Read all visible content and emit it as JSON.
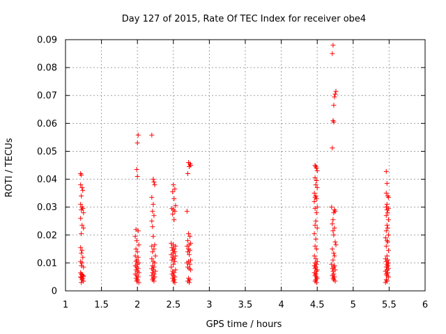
{
  "chart_data": {
    "type": "scatter",
    "title": "Day 127 of 2015, Rate Of TEC Index for receiver obe4",
    "xlabel": "GPS time / hours",
    "ylabel": "ROTI / TECUs",
    "xlim": [
      1,
      6
    ],
    "ylim": [
      0,
      0.09
    ],
    "xticks": [
      1,
      1.5,
      2,
      2.5,
      3,
      3.5,
      4,
      4.5,
      5,
      5.5,
      6
    ],
    "xtick_labels": [
      "1",
      "1.5",
      "2",
      "2.5",
      "3",
      "3.5",
      "4",
      "4.5",
      "5",
      "5.5",
      "6"
    ],
    "yticks": [
      0,
      0.01,
      0.02,
      0.03,
      0.04,
      0.05,
      0.06,
      0.07,
      0.08,
      0.09
    ],
    "ytick_labels": [
      "0",
      "0.01",
      "0.02",
      "0.03",
      "0.04",
      "0.05",
      "0.06",
      "0.07",
      "0.08",
      "0.09"
    ],
    "grid": true,
    "marker": "+",
    "color": "#ff0000",
    "series": [
      {
        "name": "obe4",
        "points": [
          [
            1.21,
            0.042
          ],
          [
            1.22,
            0.0415
          ],
          [
            1.21,
            0.038
          ],
          [
            1.23,
            0.037
          ],
          [
            1.24,
            0.036
          ],
          [
            1.22,
            0.034
          ],
          [
            1.21,
            0.031
          ],
          [
            1.23,
            0.03
          ],
          [
            1.24,
            0.0295
          ],
          [
            1.22,
            0.029
          ],
          [
            1.25,
            0.028
          ],
          [
            1.21,
            0.026
          ],
          [
            1.23,
            0.0235
          ],
          [
            1.25,
            0.0225
          ],
          [
            1.22,
            0.0205
          ],
          [
            1.21,
            0.0155
          ],
          [
            1.23,
            0.0145
          ],
          [
            1.22,
            0.0135
          ],
          [
            1.24,
            0.012
          ],
          [
            1.21,
            0.0105
          ],
          [
            1.23,
            0.01
          ],
          [
            1.22,
            0.009
          ],
          [
            1.25,
            0.0085
          ],
          [
            1.21,
            0.0065
          ],
          [
            1.22,
            0.006
          ],
          [
            1.23,
            0.0058
          ],
          [
            1.24,
            0.0055
          ],
          [
            1.25,
            0.0052
          ],
          [
            1.21,
            0.005
          ],
          [
            1.22,
            0.0047
          ],
          [
            1.24,
            0.0045
          ],
          [
            1.23,
            0.004
          ],
          [
            1.25,
            0.0035
          ],
          [
            1.22,
            0.003
          ],
          [
            1.99,
            0.0435
          ],
          [
            2.0,
            0.041
          ],
          [
            1.98,
            0.022
          ],
          [
            2.01,
            0.0215
          ],
          [
            1.97,
            0.0195
          ],
          [
            1.99,
            0.018
          ],
          [
            2.02,
            0.0165
          ],
          [
            1.98,
            0.015
          ],
          [
            2.0,
            0.014
          ],
          [
            1.97,
            0.0125
          ],
          [
            2.01,
            0.012
          ],
          [
            1.99,
            0.011
          ],
          [
            1.98,
            0.0105
          ],
          [
            2.02,
            0.01
          ],
          [
            2.0,
            0.0095
          ],
          [
            1.97,
            0.009
          ],
          [
            1.99,
            0.0085
          ],
          [
            2.01,
            0.008
          ],
          [
            1.98,
            0.0075
          ],
          [
            2.0,
            0.007
          ],
          [
            2.02,
            0.0065
          ],
          [
            1.97,
            0.006
          ],
          [
            1.99,
            0.0055
          ],
          [
            2.01,
            0.005
          ],
          [
            1.98,
            0.0045
          ],
          [
            2.0,
            0.004
          ],
          [
            1.99,
            0.0035
          ],
          [
            2.02,
            0.003
          ],
          [
            2.01,
            0.0558
          ],
          [
            2.0,
            0.053
          ],
          [
            2.2,
            0.0558
          ],
          [
            2.22,
            0.04
          ],
          [
            2.23,
            0.039
          ],
          [
            2.24,
            0.038
          ],
          [
            2.2,
            0.0335
          ],
          [
            2.22,
            0.031
          ],
          [
            2.21,
            0.0285
          ],
          [
            2.23,
            0.027
          ],
          [
            2.2,
            0.025
          ],
          [
            2.21,
            0.023
          ],
          [
            2.22,
            0.0195
          ],
          [
            2.24,
            0.0165
          ],
          [
            2.2,
            0.016
          ],
          [
            2.23,
            0.015
          ],
          [
            2.21,
            0.014
          ],
          [
            2.25,
            0.0125
          ],
          [
            2.2,
            0.0115
          ],
          [
            2.22,
            0.0105
          ],
          [
            2.24,
            0.01
          ],
          [
            2.21,
            0.009
          ],
          [
            2.23,
            0.0085
          ],
          [
            2.2,
            0.008
          ],
          [
            2.22,
            0.0075
          ],
          [
            2.25,
            0.007
          ],
          [
            2.21,
            0.0065
          ],
          [
            2.23,
            0.006
          ],
          [
            2.2,
            0.0055
          ],
          [
            2.24,
            0.005
          ],
          [
            2.22,
            0.0045
          ],
          [
            2.21,
            0.004
          ],
          [
            2.23,
            0.0035
          ],
          [
            2.5,
            0.038
          ],
          [
            2.52,
            0.0365
          ],
          [
            2.49,
            0.0355
          ],
          [
            2.51,
            0.033
          ],
          [
            2.53,
            0.0305
          ],
          [
            2.48,
            0.0295
          ],
          [
            2.5,
            0.029
          ],
          [
            2.52,
            0.0285
          ],
          [
            2.49,
            0.0275
          ],
          [
            2.51,
            0.0255
          ],
          [
            2.47,
            0.017
          ],
          [
            2.5,
            0.0165
          ],
          [
            2.53,
            0.016
          ],
          [
            2.48,
            0.0155
          ],
          [
            2.51,
            0.015
          ],
          [
            2.49,
            0.0145
          ],
          [
            2.52,
            0.014
          ],
          [
            2.5,
            0.0135
          ],
          [
            2.47,
            0.013
          ],
          [
            2.53,
            0.0125
          ],
          [
            2.49,
            0.012
          ],
          [
            2.51,
            0.0115
          ],
          [
            2.48,
            0.011
          ],
          [
            2.52,
            0.0105
          ],
          [
            2.5,
            0.0095
          ],
          [
            2.47,
            0.0085
          ],
          [
            2.53,
            0.0075
          ],
          [
            2.49,
            0.007
          ],
          [
            2.51,
            0.0065
          ],
          [
            2.48,
            0.006
          ],
          [
            2.5,
            0.0055
          ],
          [
            2.52,
            0.005
          ],
          [
            2.49,
            0.0045
          ],
          [
            2.51,
            0.004
          ],
          [
            2.5,
            0.0035
          ],
          [
            2.52,
            0.003
          ],
          [
            2.71,
            0.046
          ],
          [
            2.73,
            0.0455
          ],
          [
            2.74,
            0.045
          ],
          [
            2.72,
            0.0445
          ],
          [
            2.7,
            0.042
          ],
          [
            2.69,
            0.0285
          ],
          [
            2.71,
            0.0205
          ],
          [
            2.73,
            0.0195
          ],
          [
            2.7,
            0.018
          ],
          [
            2.74,
            0.017
          ],
          [
            2.72,
            0.0165
          ],
          [
            2.69,
            0.016
          ],
          [
            2.71,
            0.015
          ],
          [
            2.73,
            0.0145
          ],
          [
            2.7,
            0.014
          ],
          [
            2.72,
            0.013
          ],
          [
            2.74,
            0.011
          ],
          [
            2.71,
            0.0105
          ],
          [
            2.69,
            0.01
          ],
          [
            2.73,
            0.0095
          ],
          [
            2.7,
            0.0085
          ],
          [
            2.72,
            0.008
          ],
          [
            2.74,
            0.0075
          ],
          [
            2.71,
            0.0045
          ],
          [
            2.73,
            0.004
          ],
          [
            2.7,
            0.0035
          ],
          [
            2.72,
            0.003
          ],
          [
            4.47,
            0.045
          ],
          [
            4.48,
            0.0445
          ],
          [
            4.49,
            0.044
          ],
          [
            4.5,
            0.043
          ],
          [
            4.47,
            0.0405
          ],
          [
            4.49,
            0.0395
          ],
          [
            4.48,
            0.038
          ],
          [
            4.5,
            0.037
          ],
          [
            4.46,
            0.035
          ],
          [
            4.48,
            0.034
          ],
          [
            4.47,
            0.0335
          ],
          [
            4.49,
            0.033
          ],
          [
            4.46,
            0.032
          ],
          [
            4.5,
            0.03
          ],
          [
            4.47,
            0.0295
          ],
          [
            4.49,
            0.028
          ],
          [
            4.48,
            0.025
          ],
          [
            4.47,
            0.0235
          ],
          [
            4.5,
            0.0225
          ],
          [
            4.46,
            0.0205
          ],
          [
            4.48,
            0.0185
          ],
          [
            4.47,
            0.016
          ],
          [
            4.49,
            0.015
          ],
          [
            4.46,
            0.0125
          ],
          [
            4.48,
            0.0115
          ],
          [
            4.5,
            0.0105
          ],
          [
            4.47,
            0.01
          ],
          [
            4.49,
            0.0095
          ],
          [
            4.46,
            0.009
          ],
          [
            4.48,
            0.0085
          ],
          [
            4.47,
            0.008
          ],
          [
            4.5,
            0.0075
          ],
          [
            4.49,
            0.007
          ],
          [
            4.46,
            0.0065
          ],
          [
            4.48,
            0.006
          ],
          [
            4.47,
            0.0055
          ],
          [
            4.49,
            0.005
          ],
          [
            4.5,
            0.0045
          ],
          [
            4.48,
            0.004
          ],
          [
            4.47,
            0.0035
          ],
          [
            4.49,
            0.003
          ],
          [
            4.72,
            0.088
          ],
          [
            4.71,
            0.085
          ],
          [
            4.76,
            0.0715
          ],
          [
            4.75,
            0.0705
          ],
          [
            4.74,
            0.0695
          ],
          [
            4.73,
            0.0665
          ],
          [
            4.72,
            0.061
          ],
          [
            4.73,
            0.0605
          ],
          [
            4.71,
            0.0512
          ],
          [
            4.7,
            0.03
          ],
          [
            4.74,
            0.029
          ],
          [
            4.75,
            0.0285
          ],
          [
            4.73,
            0.028
          ],
          [
            4.72,
            0.0255
          ],
          [
            4.71,
            0.024
          ],
          [
            4.74,
            0.0225
          ],
          [
            4.72,
            0.0215
          ],
          [
            4.73,
            0.02
          ],
          [
            4.75,
            0.0175
          ],
          [
            4.76,
            0.0165
          ],
          [
            4.71,
            0.015
          ],
          [
            4.73,
            0.0135
          ],
          [
            4.74,
            0.0125
          ],
          [
            4.72,
            0.011
          ],
          [
            4.7,
            0.0095
          ],
          [
            4.74,
            0.009
          ],
          [
            4.73,
            0.0085
          ],
          [
            4.71,
            0.008
          ],
          [
            4.75,
            0.0075
          ],
          [
            4.72,
            0.007
          ],
          [
            4.73,
            0.006
          ],
          [
            4.71,
            0.0055
          ],
          [
            4.74,
            0.005
          ],
          [
            4.72,
            0.0045
          ],
          [
            4.73,
            0.004
          ],
          [
            4.75,
            0.0035
          ],
          [
            5.46,
            0.0428
          ],
          [
            5.47,
            0.0385
          ],
          [
            5.46,
            0.035
          ],
          [
            5.48,
            0.034
          ],
          [
            5.49,
            0.0335
          ],
          [
            5.47,
            0.031
          ],
          [
            5.46,
            0.03
          ],
          [
            5.49,
            0.0295
          ],
          [
            5.47,
            0.029
          ],
          [
            5.48,
            0.028
          ],
          [
            5.46,
            0.027
          ],
          [
            5.49,
            0.0255
          ],
          [
            5.47,
            0.0235
          ],
          [
            5.48,
            0.0225
          ],
          [
            5.46,
            0.0215
          ],
          [
            5.49,
            0.02
          ],
          [
            5.45,
            0.019
          ],
          [
            5.47,
            0.018
          ],
          [
            5.48,
            0.0175
          ],
          [
            5.46,
            0.016
          ],
          [
            5.49,
            0.0145
          ],
          [
            5.47,
            0.0125
          ],
          [
            5.45,
            0.0115
          ],
          [
            5.48,
            0.011
          ],
          [
            5.46,
            0.0105
          ],
          [
            5.49,
            0.01
          ],
          [
            5.47,
            0.0095
          ],
          [
            5.48,
            0.009
          ],
          [
            5.46,
            0.0085
          ],
          [
            5.49,
            0.008
          ],
          [
            5.47,
            0.0075
          ],
          [
            5.45,
            0.007
          ],
          [
            5.48,
            0.0065
          ],
          [
            5.46,
            0.006
          ],
          [
            5.47,
            0.0055
          ],
          [
            5.49,
            0.005
          ],
          [
            5.46,
            0.004
          ],
          [
            5.47,
            0.0035
          ],
          [
            5.45,
            0.003
          ]
        ]
      }
    ]
  }
}
